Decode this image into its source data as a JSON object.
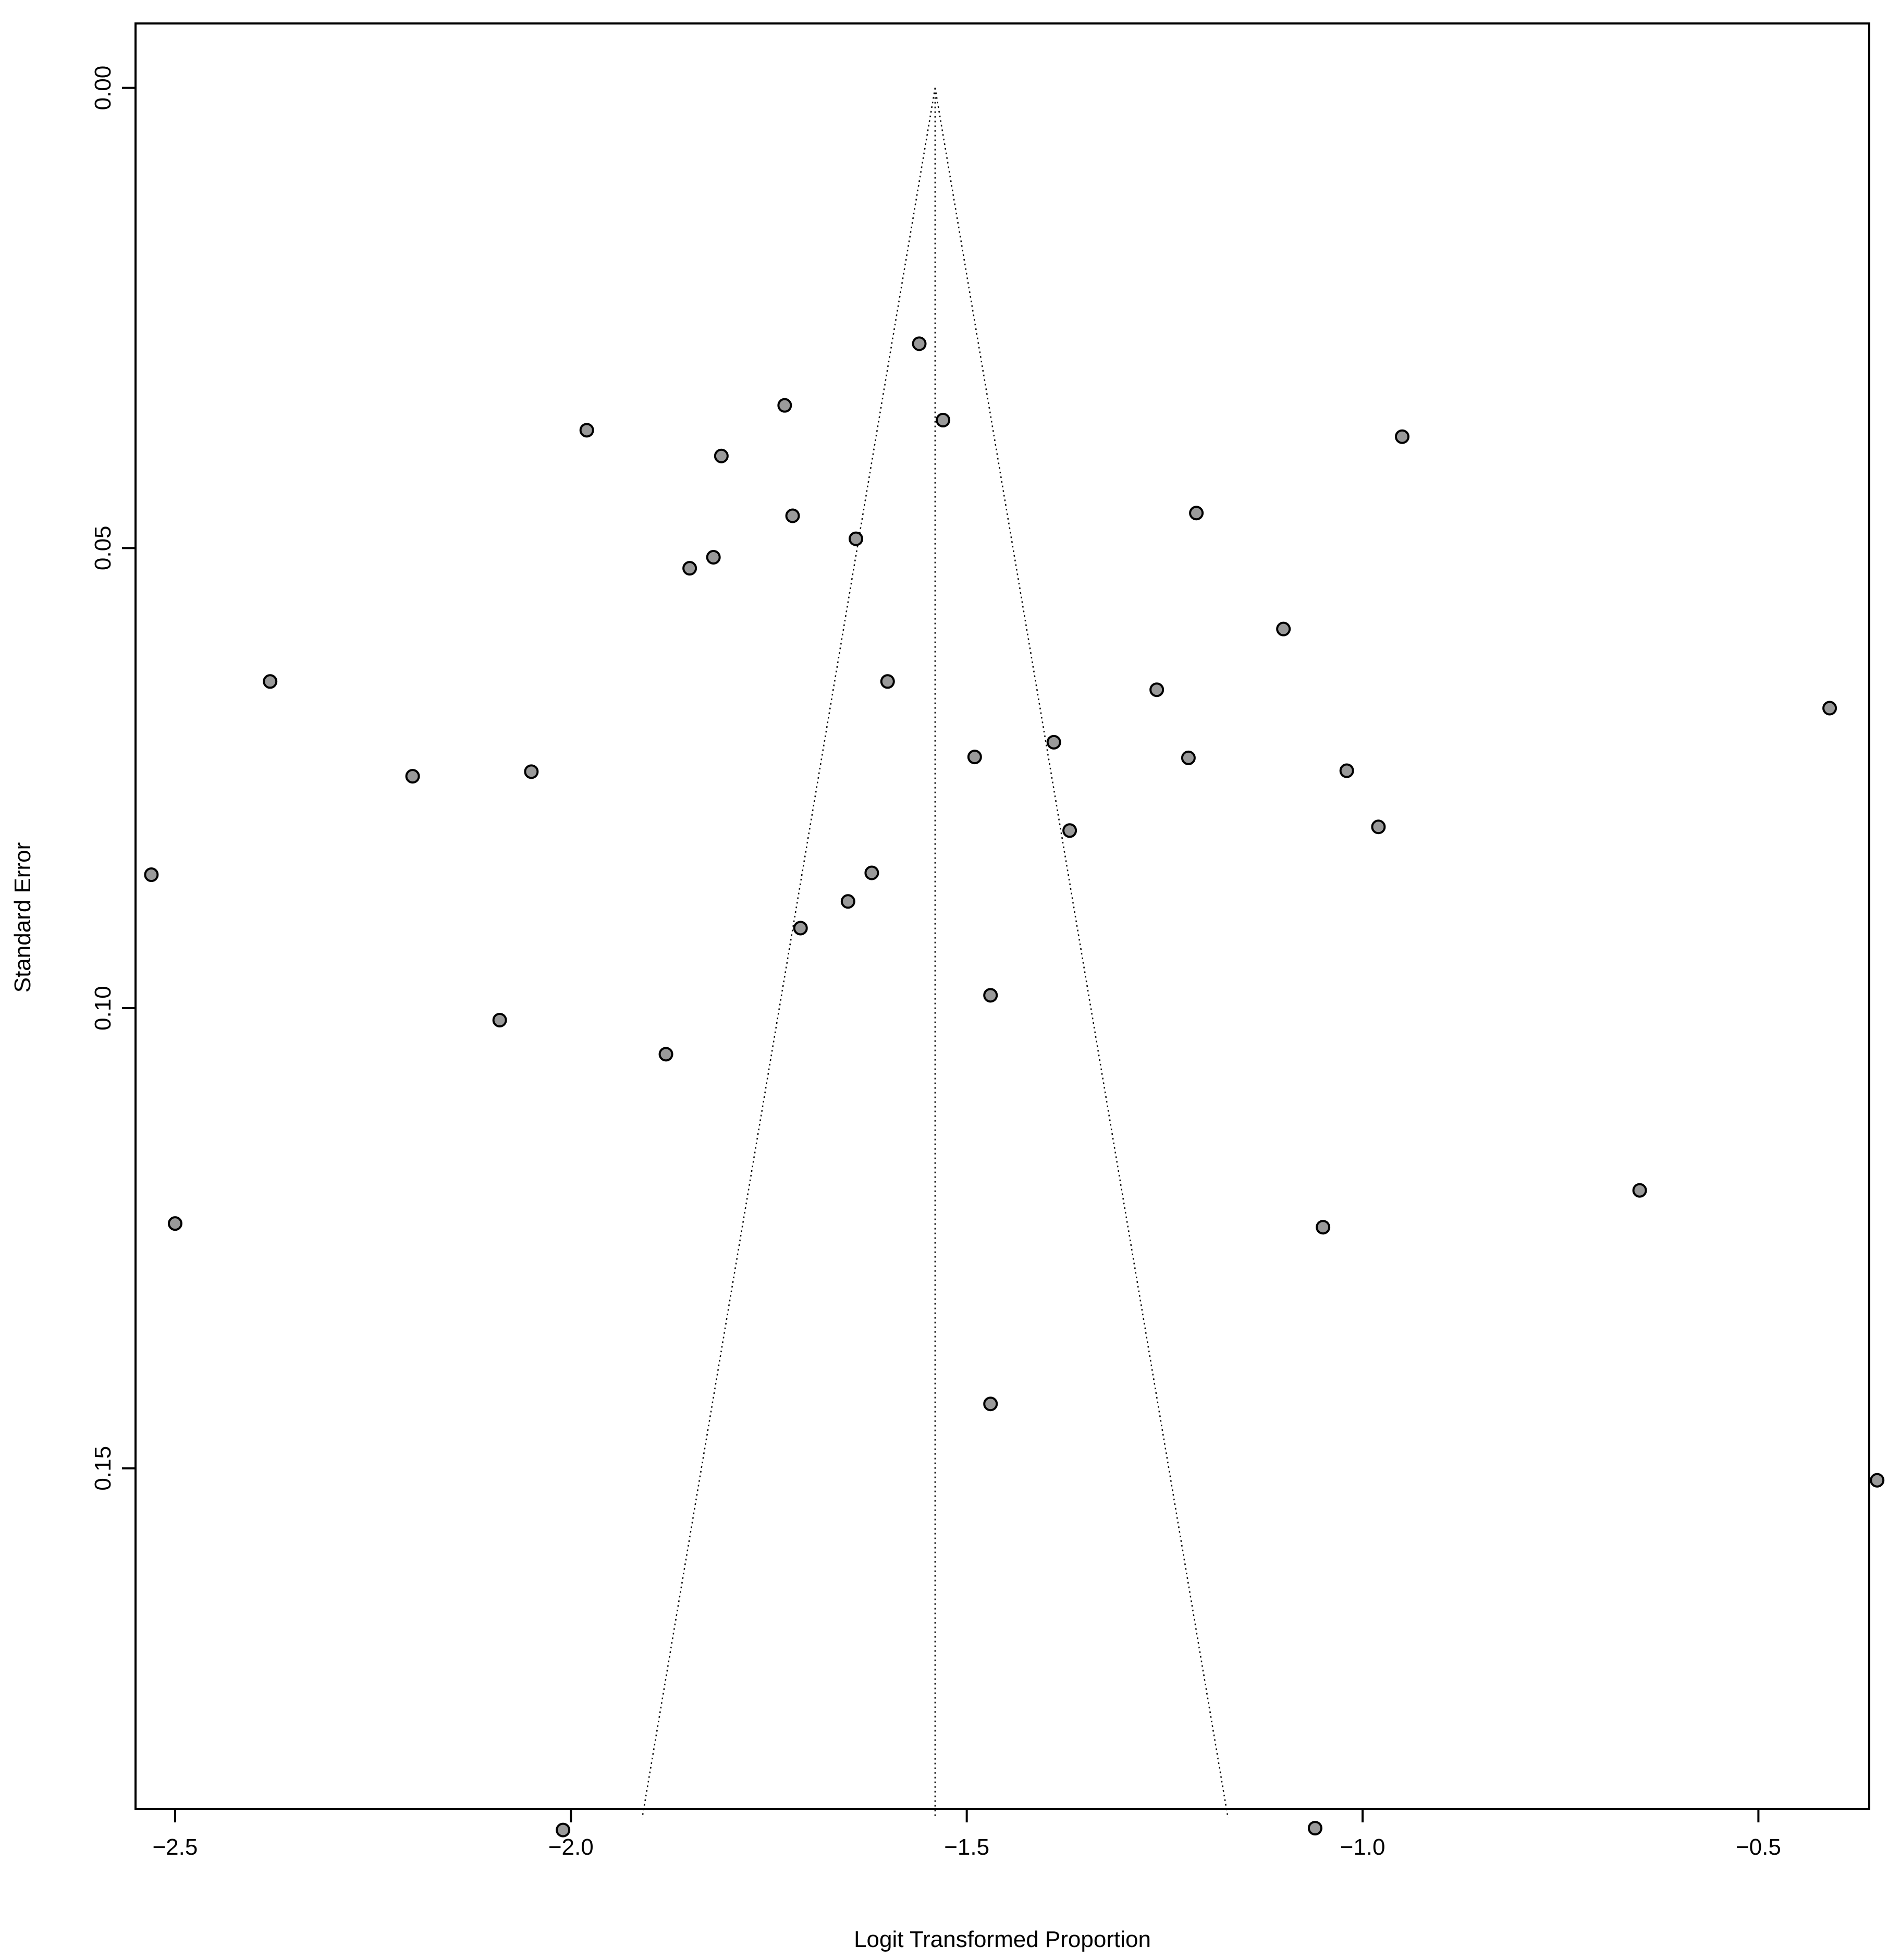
{
  "chart_data": {
    "type": "scatter",
    "title": "",
    "xlabel": "Logit Transformed Proportion",
    "ylabel": "Standard Error",
    "xlim": [
      -2.55,
      -0.36
    ],
    "ylim": [
      0.187,
      -0.007
    ],
    "y_reversed": true,
    "x_ticks": [
      {
        "value": -2.5,
        "label": "−2.5"
      },
      {
        "value": -2.0,
        "label": "−2.0"
      },
      {
        "value": -1.5,
        "label": "−1.5"
      },
      {
        "value": -1.0,
        "label": "−1.0"
      },
      {
        "value": -0.5,
        "label": "−0.5"
      }
    ],
    "y_ticks": [
      {
        "value": 0.0,
        "label": "0.00"
      },
      {
        "value": 0.05,
        "label": "0.05"
      },
      {
        "value": 0.1,
        "label": "0.10"
      },
      {
        "value": 0.15,
        "label": "0.15"
      }
    ],
    "grid": false,
    "legend": "none",
    "funnel": {
      "center": -1.54,
      "apex_se": 0.0,
      "max_se": 0.188,
      "half_width_at_max_se": 0.37
    },
    "points": [
      {
        "x": -1.56,
        "y": 0.0278
      },
      {
        "x": -1.73,
        "y": 0.0345
      },
      {
        "x": -1.53,
        "y": 0.0361
      },
      {
        "x": -1.98,
        "y": 0.0372
      },
      {
        "x": -0.95,
        "y": 0.0379
      },
      {
        "x": -1.81,
        "y": 0.04
      },
      {
        "x": -1.72,
        "y": 0.0465
      },
      {
        "x": -1.21,
        "y": 0.0462
      },
      {
        "x": -1.64,
        "y": 0.049
      },
      {
        "x": -1.82,
        "y": 0.051
      },
      {
        "x": -1.85,
        "y": 0.0522
      },
      {
        "x": -1.1,
        "y": 0.0588
      },
      {
        "x": -2.38,
        "y": 0.0645
      },
      {
        "x": -1.6,
        "y": 0.0645
      },
      {
        "x": -1.26,
        "y": 0.0654
      },
      {
        "x": -0.41,
        "y": 0.0674
      },
      {
        "x": -1.39,
        "y": 0.0711
      },
      {
        "x": -1.49,
        "y": 0.0727
      },
      {
        "x": -1.22,
        "y": 0.0728
      },
      {
        "x": -2.2,
        "y": 0.0748
      },
      {
        "x": -2.05,
        "y": 0.0743
      },
      {
        "x": -1.02,
        "y": 0.0742
      },
      {
        "x": -0.98,
        "y": 0.0803
      },
      {
        "x": -1.37,
        "y": 0.0807
      },
      {
        "x": -2.53,
        "y": 0.0855
      },
      {
        "x": -1.62,
        "y": 0.0853
      },
      {
        "x": -1.65,
        "y": 0.0884
      },
      {
        "x": -1.71,
        "y": 0.0913
      },
      {
        "x": -1.47,
        "y": 0.0986
      },
      {
        "x": -2.09,
        "y": 0.1013
      },
      {
        "x": -1.88,
        "y": 0.105
      },
      {
        "x": -0.65,
        "y": 0.1198
      },
      {
        "x": -2.5,
        "y": 0.1234
      },
      {
        "x": -1.05,
        "y": 0.1238
      },
      {
        "x": -1.47,
        "y": 0.143
      },
      {
        "x": -0.35,
        "y": 0.1513
      },
      {
        "x": -2.01,
        "y": 0.1893
      },
      {
        "x": -1.06,
        "y": 0.1891
      }
    ]
  }
}
